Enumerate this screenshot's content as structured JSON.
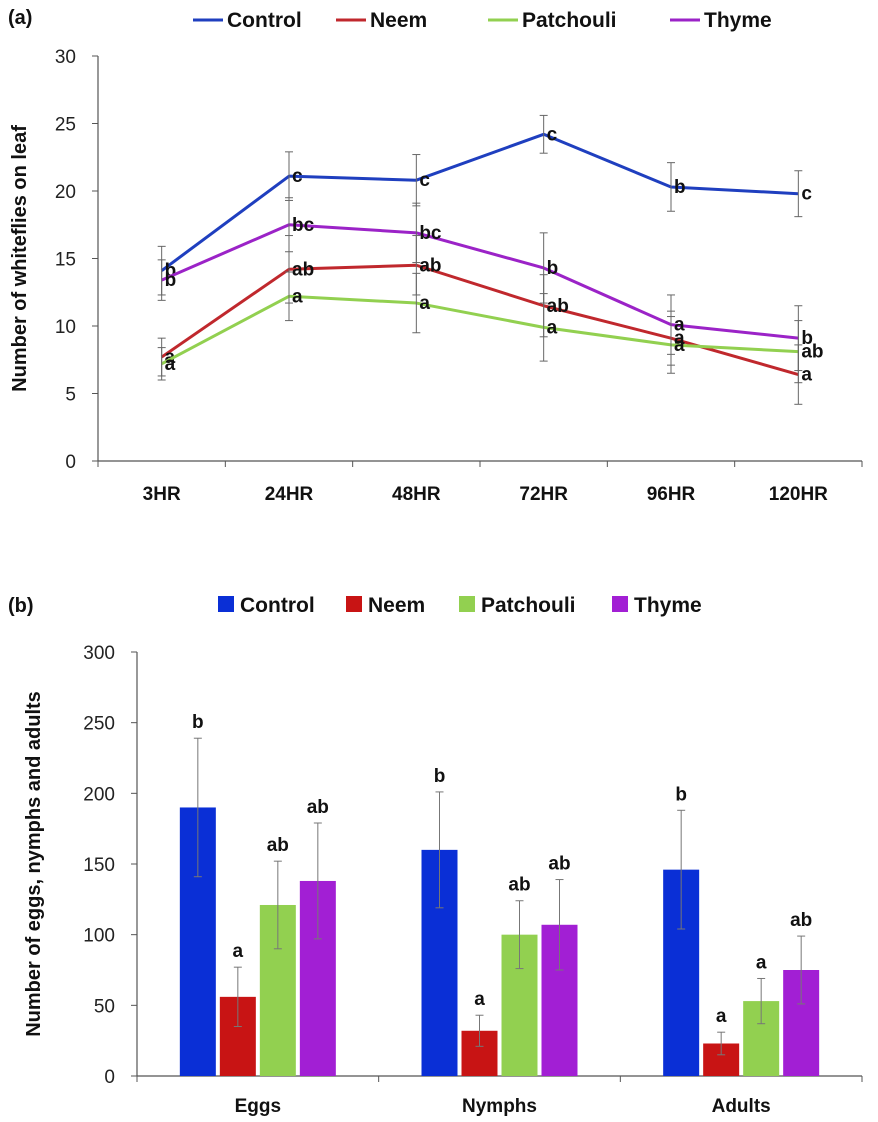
{
  "chart_data": [
    {
      "panel": "(a)",
      "type": "line",
      "xlabel": "",
      "ylabel": "Number of whiteflies on leaf",
      "ylim": [
        0,
        30
      ],
      "yticks": [
        0,
        5,
        10,
        15,
        20,
        25,
        30
      ],
      "grid": false,
      "legend_position": "top",
      "categories": [
        "3HR",
        "24HR",
        "48HR",
        "72HR",
        "96HR",
        "120HR"
      ],
      "series": [
        {
          "name": "Control",
          "color": "#1f3fbf",
          "values": [
            14.1,
            21.1,
            20.8,
            24.2,
            20.3,
            19.8
          ],
          "errors": [
            1.8,
            1.8,
            1.9,
            1.4,
            1.8,
            1.7
          ],
          "letters": [
            "b",
            "c",
            "c",
            "c",
            "b",
            "c"
          ]
        },
        {
          "name": "Neem",
          "color": "#c0282d",
          "values": [
            7.7,
            14.2,
            14.5,
            11.5,
            9.1,
            6.4
          ],
          "errors": [
            1.4,
            2.5,
            2.2,
            2.3,
            2.0,
            2.2
          ],
          "letters": [
            "a",
            "ab",
            "ab",
            "ab",
            "a",
            "a"
          ]
        },
        {
          "name": "Patchouli",
          "color": "#92d050",
          "values": [
            7.2,
            12.2,
            11.7,
            9.9,
            8.6,
            8.1
          ],
          "errors": [
            1.2,
            1.8,
            2.2,
            2.5,
            2.1,
            2.3
          ],
          "letters": [
            "a",
            "a",
            "a",
            "a",
            "a",
            "ab"
          ]
        },
        {
          "name": "Thyme",
          "color": "#9b23c7",
          "values": [
            13.4,
            17.5,
            16.9,
            14.3,
            10.1,
            9.1
          ],
          "errors": [
            1.5,
            2.0,
            2.2,
            2.6,
            2.2,
            2.4
          ],
          "letters": [
            "b",
            "bc",
            "bc",
            "b",
            "a",
            "b"
          ]
        }
      ]
    },
    {
      "panel": "(b)",
      "type": "bar",
      "xlabel": "",
      "ylabel": "Number of eggs, nymphs and adults",
      "ylim": [
        0,
        300
      ],
      "yticks": [
        0,
        50,
        100,
        150,
        200,
        250,
        300
      ],
      "grid": false,
      "legend_position": "top",
      "categories": [
        "Eggs",
        "Nymphs",
        "Adults"
      ],
      "series": [
        {
          "name": "Control",
          "color": "#0a2fd6",
          "values": [
            190,
            160,
            146
          ],
          "errors": [
            49,
            41,
            42
          ],
          "letters": [
            "b",
            "b",
            "b"
          ]
        },
        {
          "name": "Neem",
          "color": "#c81414",
          "values": [
            56,
            32,
            23
          ],
          "errors": [
            21,
            11,
            8
          ],
          "letters": [
            "a",
            "a",
            "a"
          ]
        },
        {
          "name": "Patchouli",
          "color": "#92d050",
          "values": [
            121,
            100,
            53
          ],
          "errors": [
            31,
            24,
            16
          ],
          "letters": [
            "ab",
            "ab",
            "a"
          ]
        },
        {
          "name": "Thyme",
          "color": "#a21fd4",
          "values": [
            138,
            107,
            75
          ],
          "errors": [
            41,
            32,
            24
          ],
          "letters": [
            "ab",
            "ab",
            "ab"
          ]
        }
      ]
    }
  ]
}
